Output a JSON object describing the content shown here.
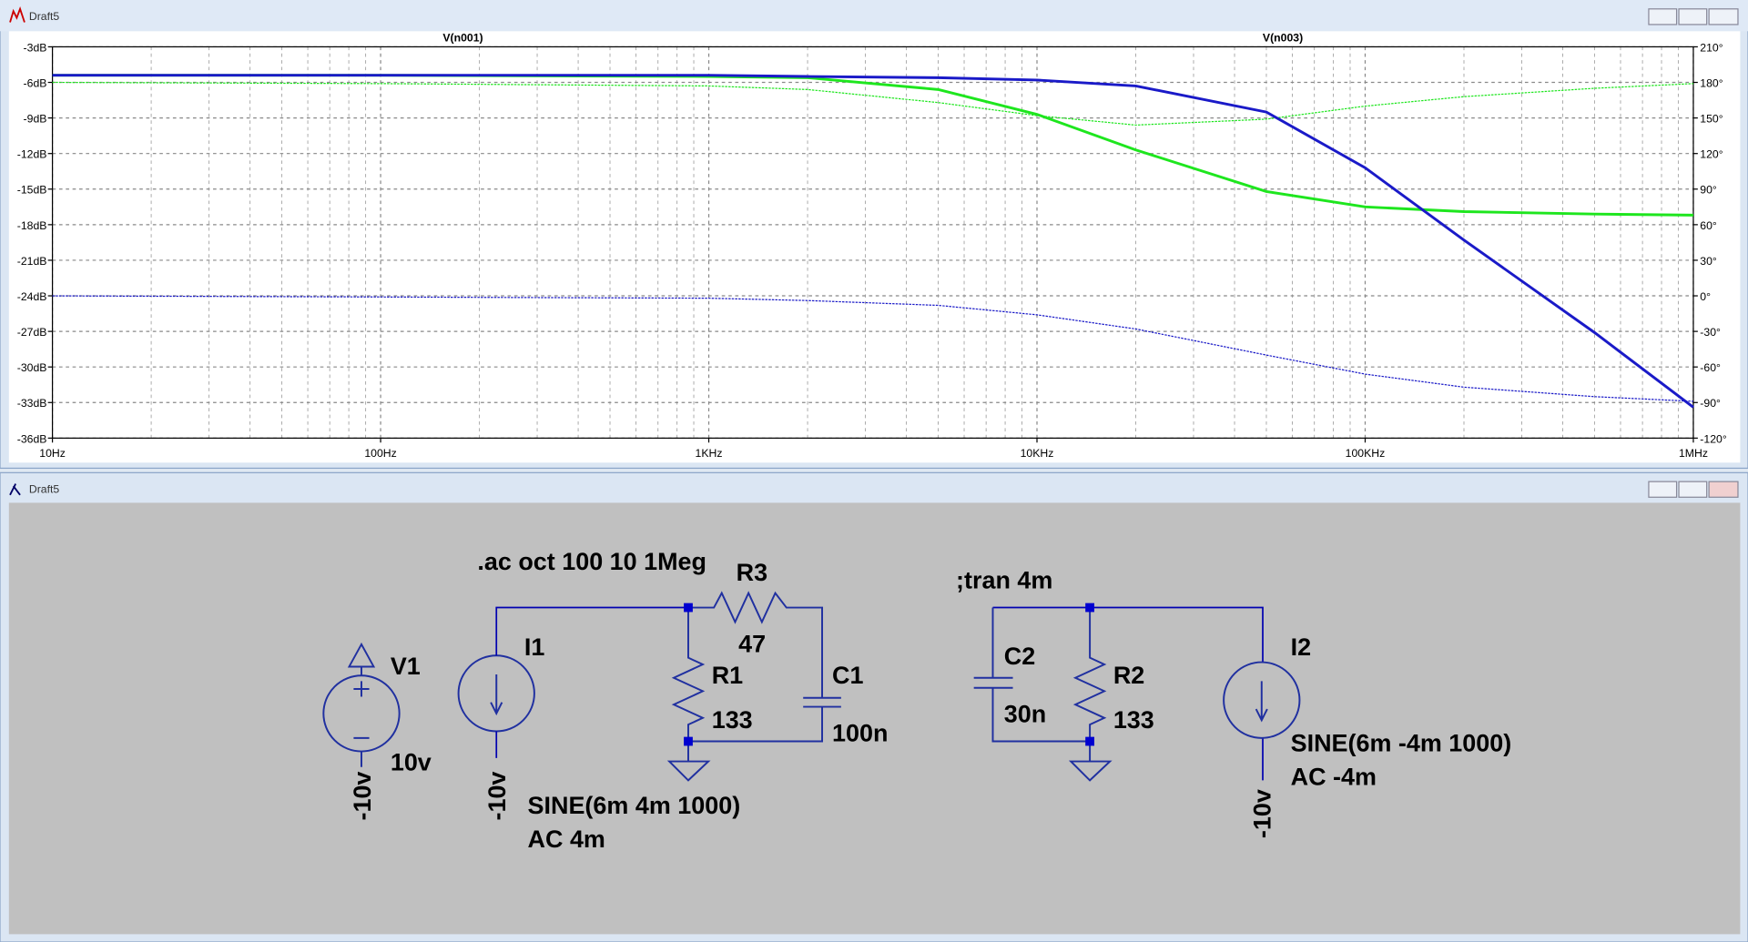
{
  "plot_window": {
    "title": "Draft5"
  },
  "chart_data": {
    "type": "line",
    "x": [
      10,
      100,
      1000,
      2000,
      5000,
      10000,
      20000,
      50000,
      100000,
      200000,
      500000,
      1000000
    ],
    "xlim": [
      10,
      1000000
    ],
    "xticks": [
      {
        "value": 10,
        "label": "10Hz"
      },
      {
        "value": 100,
        "label": "100Hz"
      },
      {
        "value": 1000,
        "label": "1KHz"
      },
      {
        "value": 10000,
        "label": "10KHz"
      },
      {
        "value": 100000,
        "label": "100KHz"
      },
      {
        "value": 1000000,
        "label": "1MHz"
      }
    ],
    "xscale": "log",
    "ylim": [
      -36,
      -3
    ],
    "yticks": [
      {
        "value": -3,
        "label": "-3dB"
      },
      {
        "value": -6,
        "label": "-6dB"
      },
      {
        "value": -9,
        "label": "-9dB"
      },
      {
        "value": -12,
        "label": "-12dB"
      },
      {
        "value": -15,
        "label": "-15dB"
      },
      {
        "value": -18,
        "label": "-18dB"
      },
      {
        "value": -21,
        "label": "-21dB"
      },
      {
        "value": -24,
        "label": "-24dB"
      },
      {
        "value": -27,
        "label": "-27dB"
      },
      {
        "value": -30,
        "label": "-30dB"
      },
      {
        "value": -33,
        "label": "-33dB"
      },
      {
        "value": -36,
        "label": "-36dB"
      }
    ],
    "y2lim": [
      -120,
      210
    ],
    "y2ticks": [
      {
        "value": 210,
        "label": "210°"
      },
      {
        "value": 180,
        "label": "180°"
      },
      {
        "value": 150,
        "label": "150°"
      },
      {
        "value": 120,
        "label": "120°"
      },
      {
        "value": 90,
        "label": "90°"
      },
      {
        "value": 60,
        "label": "60°"
      },
      {
        "value": 30,
        "label": "30°"
      },
      {
        "value": 0,
        "label": "0°"
      },
      {
        "value": -30,
        "label": "-30°"
      },
      {
        "value": -60,
        "label": "-60°"
      },
      {
        "value": -90,
        "label": "-90°"
      },
      {
        "value": -120,
        "label": "-120°"
      }
    ],
    "grid": true,
    "minor_grid": true,
    "series": [
      {
        "name": "V(n001)",
        "color": "#1ee61e",
        "values": [
          -5.4,
          -5.4,
          -5.5,
          -5.6,
          -6.6,
          -8.7,
          -11.7,
          -15.2,
          -16.5,
          -16.9,
          -17.1,
          -17.2
        ],
        "phase": [
          180,
          179,
          177,
          174,
          163,
          152,
          144,
          149,
          160,
          168,
          175,
          179
        ]
      },
      {
        "name": "V(n003)",
        "color": "#1a1ac8",
        "values": [
          -5.4,
          -5.4,
          -5.4,
          -5.5,
          -5.6,
          -5.8,
          -6.3,
          -8.5,
          -13.2,
          -19.3,
          -27.1,
          -33.4
        ],
        "phase": [
          0,
          -1,
          -2,
          -4,
          -8,
          -16,
          -28,
          -50,
          -66,
          -77,
          -85,
          -89
        ]
      }
    ]
  },
  "schematic_window": {
    "title": "Draft5"
  },
  "schematic": {
    "directives": [
      ".ac oct 100 10 1Meg",
      ";tran 4m"
    ],
    "components": [
      {
        "name": "V1",
        "value": "10v",
        "net": "-10v"
      },
      {
        "name": "I1",
        "net": "-10v",
        "value": "SINE(6m 4m 1000)",
        "ac": "AC 4m"
      },
      {
        "name": "R3",
        "value": "47"
      },
      {
        "name": "R1",
        "value": "133"
      },
      {
        "name": "C1",
        "value": "100n"
      },
      {
        "name": "C2",
        "value": "30n"
      },
      {
        "name": "R2",
        "value": "133"
      },
      {
        "name": "I2",
        "net": "-10v",
        "value": "SINE(6m -4m 1000)",
        "ac": "AC -4m"
      }
    ]
  }
}
